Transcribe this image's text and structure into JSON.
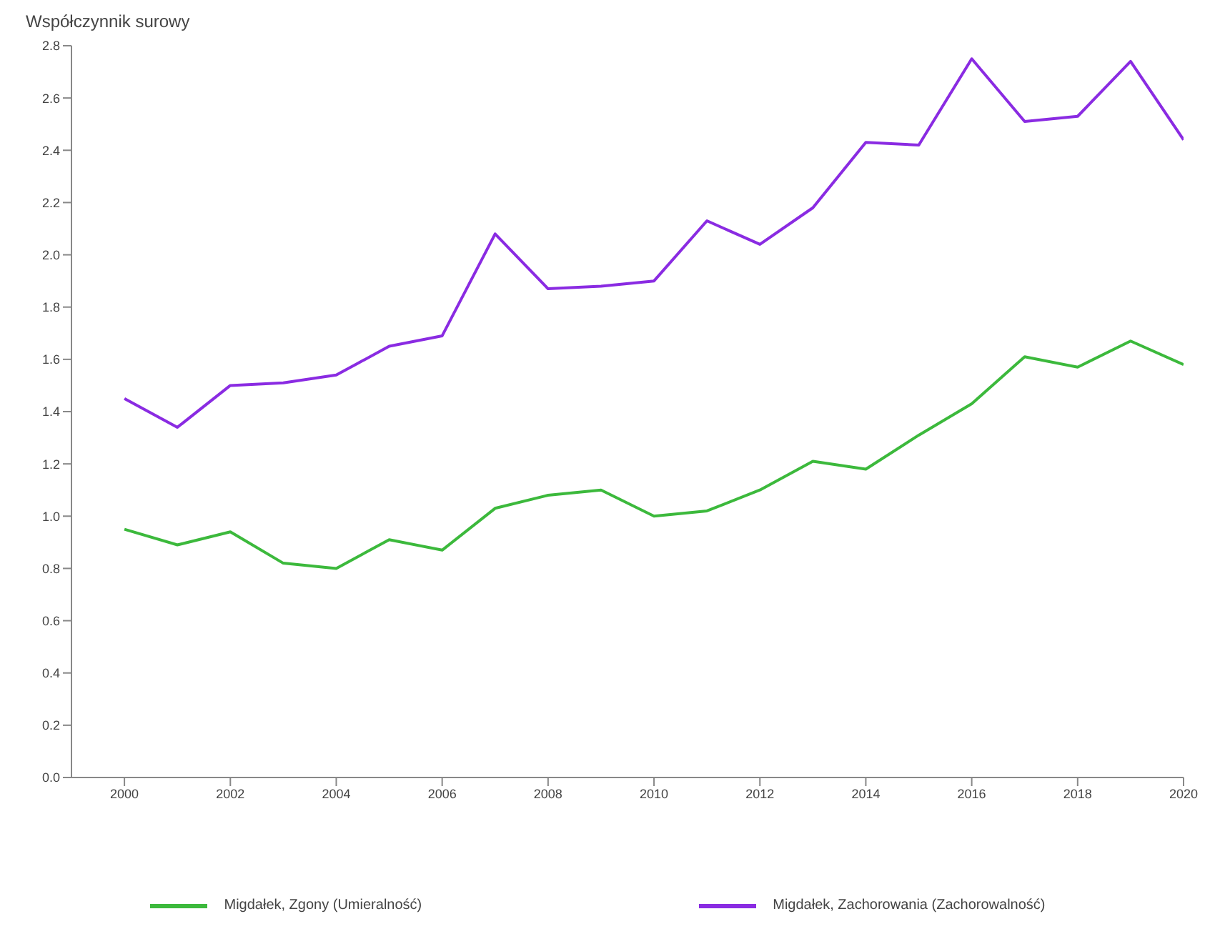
{
  "chart_data": {
    "type": "line",
    "ylabel": "Współczynnik surowy",
    "x": [
      2000,
      2001,
      2002,
      2003,
      2004,
      2005,
      2006,
      2007,
      2008,
      2009,
      2010,
      2011,
      2012,
      2013,
      2014,
      2015,
      2016,
      2017,
      2018,
      2019,
      2020
    ],
    "series": [
      {
        "name": "Migdałek, Zgony (Umieralność)",
        "color": "#3cb93c",
        "values": [
          0.95,
          0.89,
          0.94,
          0.82,
          0.8,
          0.91,
          0.87,
          1.03,
          1.08,
          1.1,
          1.0,
          1.02,
          1.1,
          1.21,
          1.18,
          1.31,
          1.43,
          1.61,
          1.57,
          1.67,
          1.58
        ]
      },
      {
        "name": "Migdałek, Zachorowania (Zachorowalność)",
        "color": "#8a2be2",
        "values": [
          1.45,
          1.34,
          1.5,
          1.51,
          1.54,
          1.65,
          1.69,
          2.08,
          1.87,
          1.88,
          1.9,
          2.13,
          2.04,
          2.18,
          2.43,
          2.42,
          2.75,
          2.51,
          2.53,
          2.74,
          2.44
        ]
      }
    ],
    "xlim": [
      1999,
      2020
    ],
    "xticks": [
      2000,
      2002,
      2004,
      2006,
      2008,
      2010,
      2012,
      2014,
      2016,
      2018,
      2020
    ],
    "ylim": [
      0,
      2.8
    ],
    "yticks": [
      {
        "value": 0,
        "label": "0.0"
      },
      0.2,
      0.4,
      0.6,
      0.8,
      {
        "value": 1,
        "label": "1.0"
      },
      1.2,
      1.4,
      1.6,
      1.8,
      {
        "value": 2,
        "label": "2.0"
      },
      2.2,
      2.4,
      2.6,
      2.8
    ],
    "grid": false,
    "legend": "bottom",
    "marker": "none",
    "line_style": "solid"
  }
}
